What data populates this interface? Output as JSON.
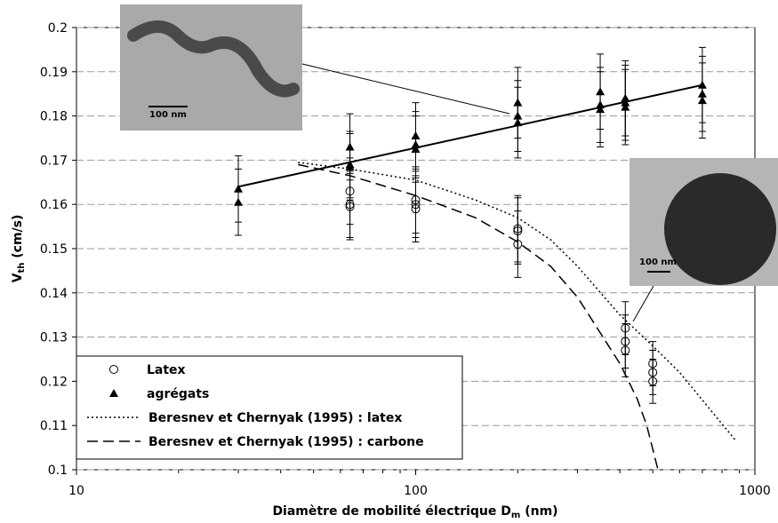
{
  "chart_data": {
    "type": "scatter",
    "xlabel": {
      "main": "Diamètre de mobilité électrique D",
      "sub": "m",
      "rest": " (nm)"
    },
    "ylabel": {
      "main": "V",
      "sub": "th",
      "rest": " (cm/s)"
    },
    "xlim": [
      10,
      1000
    ],
    "xticks": [
      10,
      100,
      1000
    ],
    "xscale": "log",
    "ylim": [
      0.1,
      0.2
    ],
    "yticks": [
      0.1,
      0.11,
      0.12,
      0.13,
      0.14,
      0.15,
      0.16,
      0.17,
      0.18,
      0.19,
      0.2
    ],
    "grid": true,
    "legend": "lower left",
    "series": [
      {
        "name": "Latex",
        "marker": "circle",
        "color": "#000",
        "x": [
          64,
          64,
          64,
          100,
          100,
          100,
          200,
          200,
          200,
          415,
          415,
          415,
          500,
          500,
          500
        ],
        "values": [
          0.163,
          0.16,
          0.1595,
          0.161,
          0.16,
          0.159,
          0.1545,
          0.154,
          0.151,
          0.132,
          0.129,
          0.127,
          0.124,
          0.122,
          0.12
        ],
        "errors": [
          0.0075,
          0.0075,
          0.0075,
          0.0075,
          0.0075,
          0.0075,
          0.0075,
          0.0075,
          0.0075,
          0.006,
          0.006,
          0.006,
          0.005,
          0.005,
          0.005
        ]
      },
      {
        "name": "agrégats",
        "marker": "triangle",
        "color": "#000",
        "x": [
          30,
          30,
          64,
          64,
          64,
          100,
          100,
          100,
          200,
          200,
          200,
          350,
          350,
          350,
          415,
          415,
          415,
          700,
          700,
          700
        ],
        "values": [
          0.1635,
          0.1605,
          0.173,
          0.169,
          0.1685,
          0.1755,
          0.1735,
          0.1725,
          0.183,
          0.18,
          0.1785,
          0.1855,
          0.1825,
          0.1815,
          0.184,
          0.183,
          0.182,
          0.187,
          0.185,
          0.1835
        ],
        "errors": [
          0.0075,
          0.0075,
          0.0075,
          0.0075,
          0.0075,
          0.0075,
          0.0075,
          0.0075,
          0.008,
          0.008,
          0.008,
          0.0085,
          0.0085,
          0.0085,
          0.0085,
          0.0085,
          0.0085,
          0.0085,
          0.0085,
          0.0085
        ]
      },
      {
        "name": "Beresnev et Chernyak (1995) : latex",
        "marker": "line",
        "dash": "2 3",
        "color": "#000",
        "x": [
          45,
          64,
          100,
          150,
          200,
          250,
          300,
          400,
          500,
          600,
          880
        ],
        "values": [
          0.1695,
          0.168,
          0.1655,
          0.161,
          0.157,
          0.152,
          0.146,
          0.135,
          0.128,
          0.122,
          0.1065
        ]
      },
      {
        "name": "Beresnev et Chernyak (1995) : carbone",
        "marker": "line",
        "dash": "12 6",
        "color": "#000",
        "x": [
          45,
          64,
          100,
          150,
          200,
          250,
          300,
          400,
          450,
          480,
          518
        ],
        "values": [
          0.169,
          0.1665,
          0.162,
          0.157,
          0.1515,
          0.146,
          0.139,
          0.124,
          0.116,
          0.11,
          0.1
        ]
      }
    ],
    "trend_line": {
      "x": [
        30,
        700
      ],
      "values": [
        0.164,
        0.187
      ]
    },
    "insets": [
      {
        "scale_label": "100 nm"
      },
      {
        "scale_label": "100 nm"
      }
    ]
  }
}
